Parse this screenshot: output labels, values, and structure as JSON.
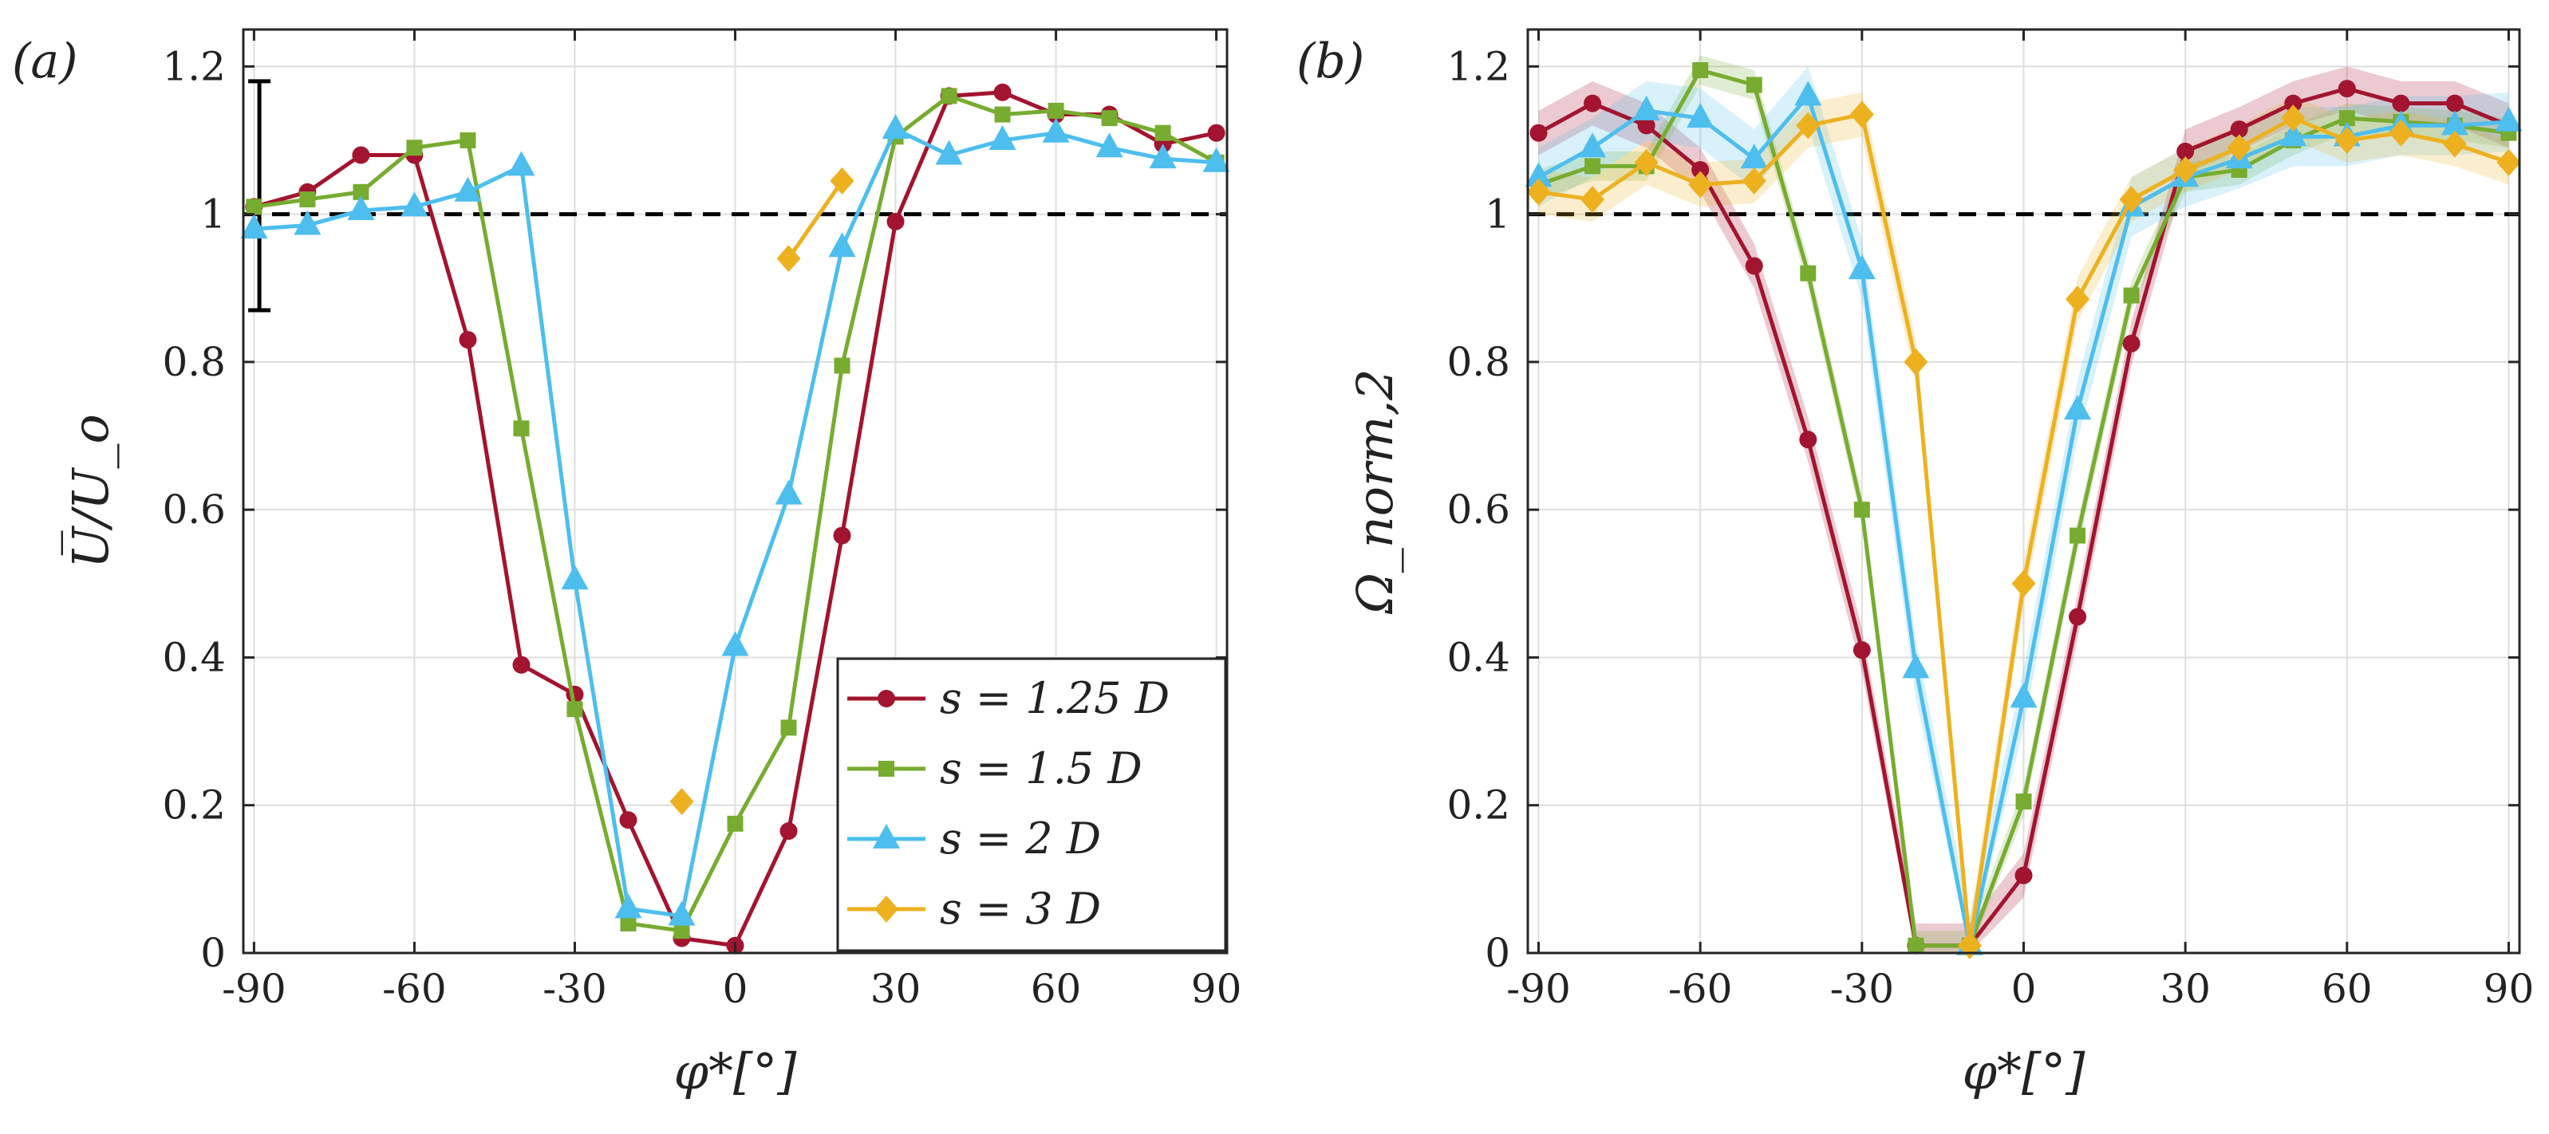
{
  "chart_data": [
    {
      "type": "line",
      "panel_label": "(a)",
      "xlabel": "φ*[°]",
      "ylabel": "U̅/U_o",
      "xlim": [
        -92,
        92
      ],
      "ylim": [
        0,
        1.25
      ],
      "xticks": [
        -90,
        -60,
        -30,
        0,
        30,
        60,
        90
      ],
      "xtick_labels": [
        "-90",
        "-60",
        "-30",
        "0",
        "30",
        "60",
        "90"
      ],
      "yticks": [
        0,
        0.2,
        0.4,
        0.6,
        0.8,
        1.0,
        1.2
      ],
      "ytick_labels": [
        "0",
        "0.2",
        "0.4",
        "0.6",
        "0.8",
        "1",
        "1.2"
      ],
      "grid": true,
      "reference_line": 1,
      "error_bar": {
        "x": -89,
        "low": 0.87,
        "high": 1.18
      },
      "legend_position": "bottom-right",
      "series": [
        {
          "name": "s = 1.25 D",
          "color": "#A2142F",
          "marker": "circle",
          "points": [
            [
              -90,
              1.01
            ],
            [
              -80,
              1.03
            ],
            [
              -70,
              1.08
            ],
            [
              -60,
              1.08
            ],
            [
              -50,
              0.83
            ],
            [
              -40,
              0.39
            ],
            [
              -30,
              0.35
            ],
            [
              -20,
              0.18
            ],
            [
              -10,
              0.02
            ],
            [
              0,
              0.01
            ],
            [
              10,
              0.165
            ],
            [
              20,
              0.565
            ],
            [
              30,
              0.99
            ],
            [
              40,
              1.16
            ],
            [
              50,
              1.165
            ],
            [
              60,
              1.135
            ],
            [
              70,
              1.135
            ],
            [
              80,
              1.095
            ],
            [
              90,
              1.11
            ]
          ]
        },
        {
          "name": "s = 1.5 D",
          "color": "#77AC30",
          "marker": "square",
          "points": [
            [
              -90,
              1.01
            ],
            [
              -80,
              1.02
            ],
            [
              -70,
              1.03
            ],
            [
              -60,
              1.09
            ],
            [
              -50,
              1.1
            ],
            [
              -40,
              0.71
            ],
            [
              -30,
              0.33
            ],
            [
              -20,
              0.04
            ],
            [
              -10,
              0.03
            ],
            [
              0,
              0.175
            ],
            [
              10,
              0.305
            ],
            [
              20,
              0.795
            ],
            [
              30,
              1.105
            ],
            [
              40,
              1.16
            ],
            [
              50,
              1.135
            ],
            [
              60,
              1.14
            ],
            [
              70,
              1.13
            ],
            [
              80,
              1.11
            ],
            [
              90,
              1.07
            ]
          ]
        },
        {
          "name": "s = 2 D",
          "color": "#4DBEEE",
          "marker": "triangle",
          "points": [
            [
              -90,
              0.98
            ],
            [
              -80,
              0.985
            ],
            [
              -70,
              1.005
            ],
            [
              -60,
              1.01
            ],
            [
              -50,
              1.03
            ],
            [
              -40,
              1.065
            ],
            [
              -30,
              0.505
            ],
            [
              -20,
              0.06
            ],
            [
              -10,
              0.05
            ],
            [
              0,
              0.415
            ],
            [
              10,
              0.62
            ],
            [
              20,
              0.955
            ],
            [
              30,
              1.115
            ],
            [
              40,
              1.08
            ],
            [
              50,
              1.1
            ],
            [
              60,
              1.11
            ],
            [
              70,
              1.09
            ],
            [
              80,
              1.075
            ],
            [
              90,
              1.07
            ]
          ]
        },
        {
          "name": "s = 3 D",
          "color": "#EDB120",
          "marker": "diamond",
          "segments": [
            [
              [
                -10,
                0.205
              ]
            ],
            [
              [
                10,
                0.94
              ],
              [
                20,
                1.045
              ]
            ]
          ]
        }
      ]
    },
    {
      "type": "line",
      "panel_label": "(b)",
      "xlabel": "φ*[°]",
      "ylabel": "Ω_norm,2",
      "xlim": [
        -92,
        92
      ],
      "ylim": [
        0,
        1.25
      ],
      "xticks": [
        -90,
        -60,
        -30,
        0,
        30,
        60,
        90
      ],
      "xtick_labels": [
        "-90",
        "-60",
        "-30",
        "0",
        "30",
        "60",
        "90"
      ],
      "yticks": [
        0,
        0.2,
        0.4,
        0.6,
        0.8,
        1.0,
        1.2
      ],
      "ytick_labels": [
        "0",
        "0.2",
        "0.4",
        "0.6",
        "0.8",
        "1",
        "1.2"
      ],
      "grid": true,
      "reference_line": 1,
      "series": [
        {
          "name": "s = 1.25 D",
          "color": "#A2142F",
          "marker": "circle",
          "points": [
            [
              -90,
              1.11
            ],
            [
              -80,
              1.15
            ],
            [
              -70,
              1.12
            ],
            [
              -60,
              1.06
            ],
            [
              -50,
              0.93
            ],
            [
              -40,
              0.695
            ],
            [
              -30,
              0.41
            ],
            [
              -20,
              0.01
            ],
            [
              -10,
              0.01
            ],
            [
              0,
              0.105
            ],
            [
              10,
              0.455
            ],
            [
              20,
              0.825
            ],
            [
              30,
              1.085
            ],
            [
              40,
              1.115
            ],
            [
              50,
              1.15
            ],
            [
              60,
              1.17
            ],
            [
              70,
              1.15
            ],
            [
              80,
              1.15
            ],
            [
              90,
              1.12
            ]
          ],
          "band": 0.03
        },
        {
          "name": "s = 1.5 D",
          "color": "#77AC30",
          "marker": "square",
          "points": [
            [
              -90,
              1.04
            ],
            [
              -80,
              1.065
            ],
            [
              -70,
              1.065
            ],
            [
              -60,
              1.195
            ],
            [
              -50,
              1.175
            ],
            [
              -40,
              0.92
            ],
            [
              -30,
              0.6
            ],
            [
              -20,
              0.01
            ],
            [
              -10,
              0.01
            ],
            [
              0,
              0.205
            ],
            [
              10,
              0.565
            ],
            [
              20,
              0.89
            ],
            [
              30,
              1.05
            ],
            [
              40,
              1.06
            ],
            [
              50,
              1.1
            ],
            [
              60,
              1.13
            ],
            [
              70,
              1.125
            ],
            [
              80,
              1.12
            ],
            [
              90,
              1.11
            ]
          ],
          "band": 0.02
        },
        {
          "name": "s = 2 D",
          "color": "#4DBEEE",
          "marker": "triangle",
          "points": [
            [
              -90,
              1.05
            ],
            [
              -80,
              1.09
            ],
            [
              -70,
              1.14
            ],
            [
              -60,
              1.13
            ],
            [
              -50,
              1.075
            ],
            [
              -40,
              1.16
            ],
            [
              -30,
              0.925
            ],
            [
              -20,
              0.385
            ],
            [
              -10,
              0.01
            ],
            [
              0,
              0.345
            ],
            [
              10,
              0.735
            ],
            [
              20,
              1.01
            ],
            [
              30,
              1.05
            ],
            [
              40,
              1.075
            ],
            [
              50,
              1.105
            ],
            [
              60,
              1.105
            ],
            [
              70,
              1.12
            ],
            [
              80,
              1.12
            ],
            [
              90,
              1.125
            ]
          ],
          "band": 0.04
        },
        {
          "name": "s = 3 D",
          "color": "#EDB120",
          "marker": "diamond",
          "points": [
            [
              -90,
              1.03
            ],
            [
              -80,
              1.02
            ],
            [
              -70,
              1.07
            ],
            [
              -60,
              1.04
            ],
            [
              -50,
              1.045
            ],
            [
              -40,
              1.12
            ],
            [
              -30,
              1.135
            ],
            [
              -20,
              0.8
            ],
            [
              -10,
              0.01
            ],
            [
              0,
              0.5
            ],
            [
              10,
              0.885
            ],
            [
              20,
              1.02
            ],
            [
              30,
              1.06
            ],
            [
              40,
              1.09
            ],
            [
              50,
              1.13
            ],
            [
              60,
              1.1
            ],
            [
              70,
              1.11
            ],
            [
              80,
              1.095
            ],
            [
              90,
              1.07
            ]
          ],
          "band": 0.03
        }
      ]
    }
  ]
}
